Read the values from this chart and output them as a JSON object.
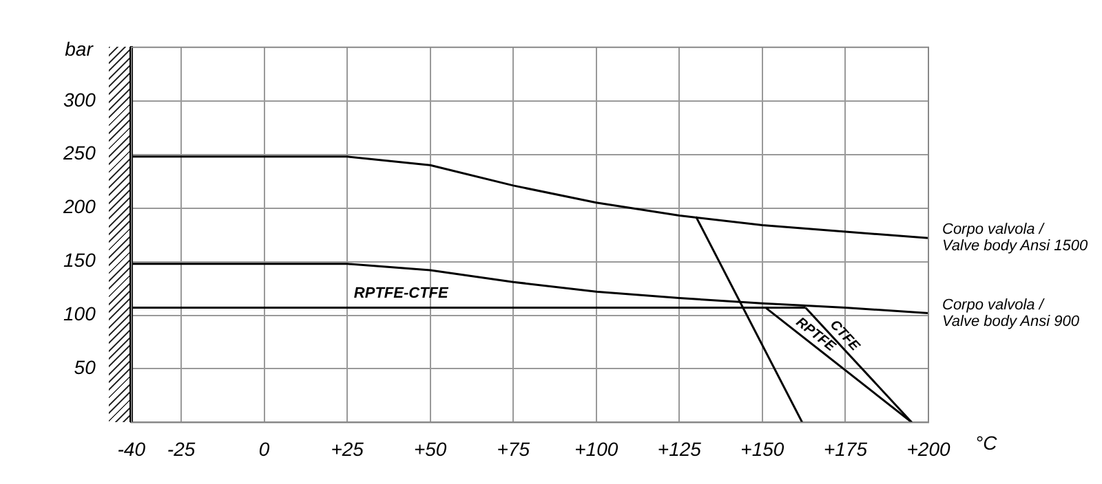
{
  "chart_data": {
    "type": "line",
    "xlabel": "°C",
    "ylabel": "bar",
    "xlim": [
      -40,
      200
    ],
    "ylim": [
      0,
      350
    ],
    "xticks": [
      -40,
      -25,
      0,
      {
        "value": 25,
        "label": "+25"
      },
      {
        "value": 50,
        "label": "+50"
      },
      {
        "value": 75,
        "label": "+75"
      },
      {
        "value": 100,
        "label": "+100"
      },
      {
        "value": 125,
        "label": "+125"
      },
      {
        "value": 150,
        "label": "+150"
      },
      {
        "value": 175,
        "label": "+175"
      },
      {
        "value": 200,
        "label": "+200"
      }
    ],
    "yticks": [
      50,
      100,
      150,
      200,
      250,
      300
    ],
    "grid": true,
    "legend": false,
    "marker": "none",
    "line_style": "solid",
    "series": [
      {
        "name": "Corpo valvola / Valve body Ansi 1500",
        "color": "#000000",
        "x": [
          -40,
          25,
          50,
          75,
          100,
          125,
          150,
          175,
          200
        ],
        "values": [
          248,
          248,
          240,
          221,
          205,
          193,
          184,
          178,
          172
        ]
      },
      {
        "name": "Corpo valvola / Valve body Ansi 900",
        "color": "#000000",
        "x": [
          -40,
          25,
          50,
          75,
          100,
          125,
          150,
          175,
          200
        ],
        "values": [
          148,
          148,
          142,
          131,
          122,
          116,
          111,
          107,
          102
        ]
      },
      {
        "name": "RPTFE-CTFE",
        "color": "#000000",
        "x": [
          -40,
          163
        ],
        "values": [
          107,
          107
        ]
      },
      {
        "color": "#000000",
        "x": [
          130,
          162
        ],
        "values": [
          192,
          0
        ]
      },
      {
        "name": "RPTFE",
        "color": "#000000",
        "x": [
          151,
          195
        ],
        "values": [
          107,
          0
        ]
      },
      {
        "name": "CTFE",
        "color": "#000000",
        "x": [
          163,
          195
        ],
        "values": [
          107,
          0
        ]
      }
    ]
  }
}
